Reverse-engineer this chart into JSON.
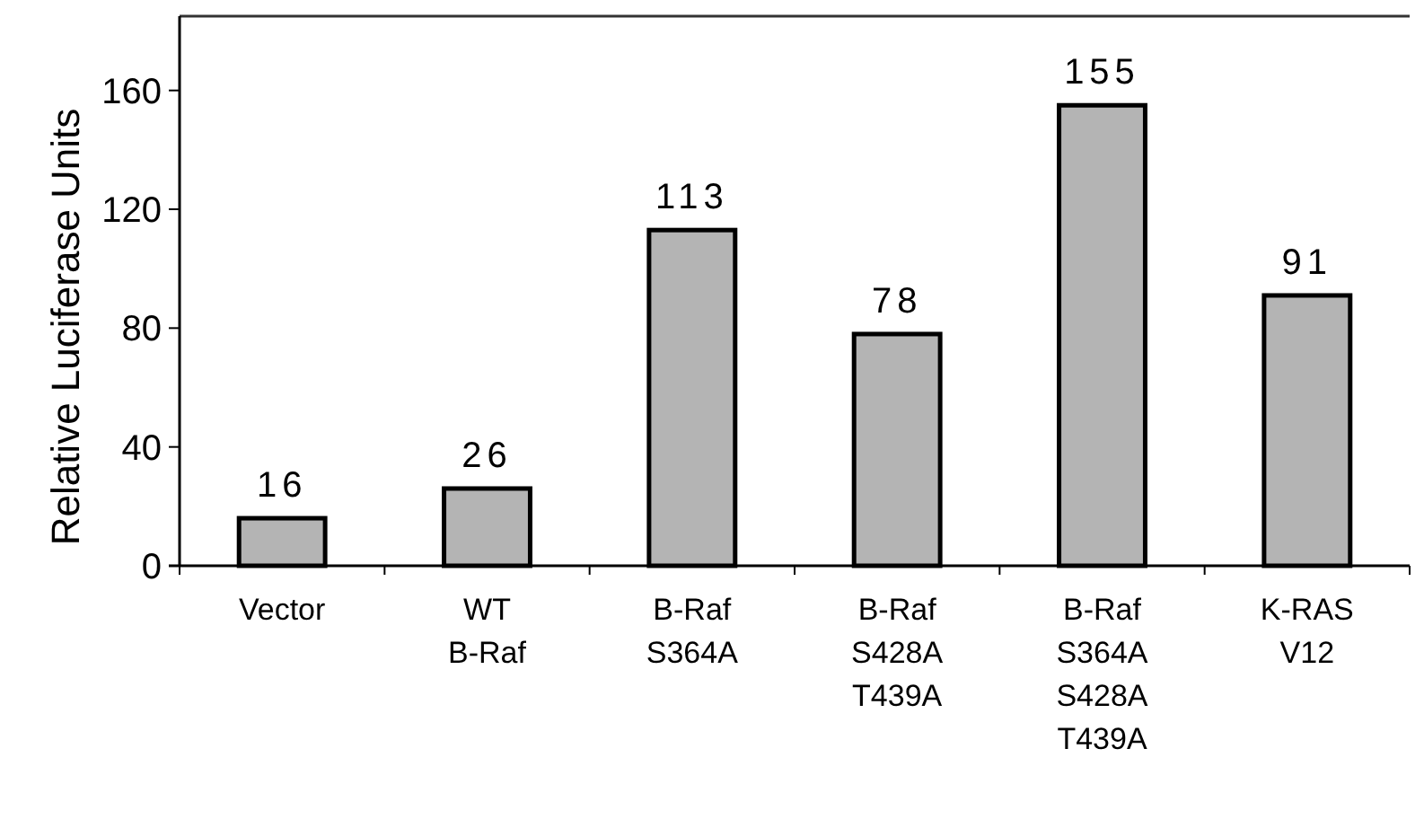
{
  "chart_data": {
    "type": "bar",
    "ylabel": "Relative Luciferase Units",
    "categories": [
      "Vector",
      "WT\nB-Raf",
      "B-Raf\nS364A",
      "B-Raf\nS428A\nT439A",
      "B-Raf\nS364A\nS428A\nT439A",
      "K-RAS\nV12"
    ],
    "values": [
      16,
      26,
      113,
      78,
      155,
      91
    ],
    "color": "#b4b4b4",
    "ylim": [
      0,
      185
    ],
    "yticks": [
      0,
      40,
      80,
      120,
      160
    ],
    "grid": false,
    "data_labels": true
  }
}
